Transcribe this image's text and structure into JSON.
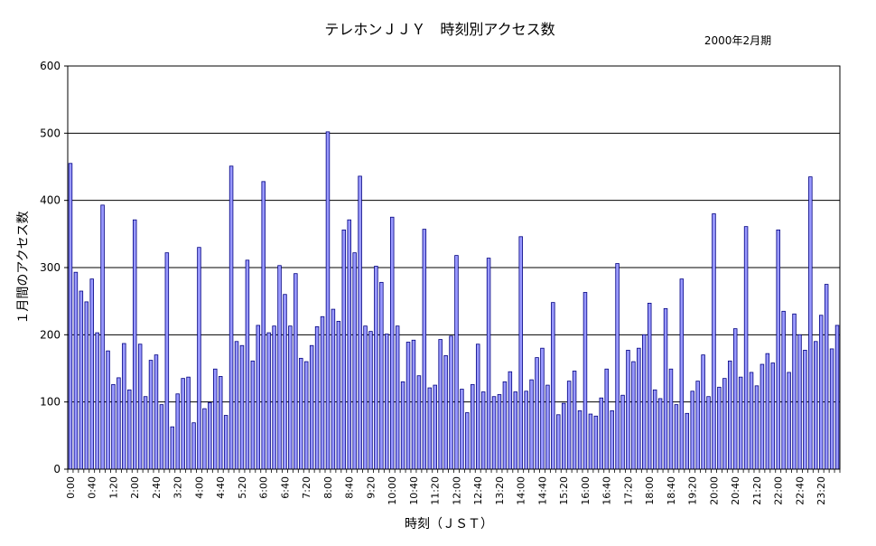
{
  "chart_data": {
    "type": "bar",
    "title": "テレホンＪＪＹ　時刻別アクセス数",
    "subtitle": "2000年2月期",
    "xlabel": "時刻（ＪＳＴ）",
    "ylabel": "１月間のアクセス数",
    "ylim": [
      0,
      600
    ],
    "yticks": [
      0,
      100,
      200,
      300,
      400,
      500,
      600
    ],
    "grid": true,
    "bar_color": "#9999ff",
    "bar_edge_color": "#000080",
    "interval_minutes": 10,
    "xtick_labels": [
      "0:00",
      "0:40",
      "1:20",
      "2:00",
      "2:40",
      "3:20",
      "4:00",
      "4:40",
      "5:20",
      "6:00",
      "6:40",
      "7:20",
      "8:00",
      "8:40",
      "9:20",
      "10:00",
      "10:40",
      "11:20",
      "12:00",
      "12:40",
      "13:20",
      "14:00",
      "14:40",
      "15:20",
      "16:00",
      "16:40",
      "17:20",
      "18:00",
      "18:40",
      "19:20",
      "20:00",
      "20:40",
      "21:20",
      "22:00",
      "22:40",
      "23:20"
    ],
    "values": [
      455,
      293,
      265,
      249,
      283,
      203,
      393,
      176,
      126,
      136,
      187,
      118,
      371,
      186,
      108,
      162,
      170,
      96,
      322,
      63,
      112,
      135,
      137,
      69,
      330,
      90,
      99,
      149,
      138,
      80,
      451,
      190,
      184,
      311,
      161,
      214,
      428,
      203,
      213,
      303,
      260,
      213,
      291,
      165,
      160,
      184,
      212,
      227,
      502,
      238,
      220,
      356,
      371,
      322,
      436,
      213,
      205,
      302,
      278,
      201,
      375,
      213,
      130,
      189,
      192,
      139,
      357,
      121,
      125,
      193,
      169,
      198,
      318,
      119,
      84,
      126,
      186,
      115,
      314,
      108,
      111,
      130,
      145,
      115,
      346,
      116,
      133,
      166,
      180,
      125,
      248,
      81,
      98,
      131,
      146,
      87,
      263,
      82,
      79,
      106,
      149,
      87,
      306,
      110,
      177,
      160,
      180,
      200,
      247,
      118,
      105,
      239,
      149,
      96,
      283,
      83,
      116,
      131,
      170,
      108,
      380,
      122,
      135,
      161,
      209,
      137,
      361,
      144,
      124,
      156,
      172,
      158,
      356,
      235,
      144,
      231,
      200,
      177,
      435,
      190,
      229,
      275,
      179,
      214
    ]
  }
}
